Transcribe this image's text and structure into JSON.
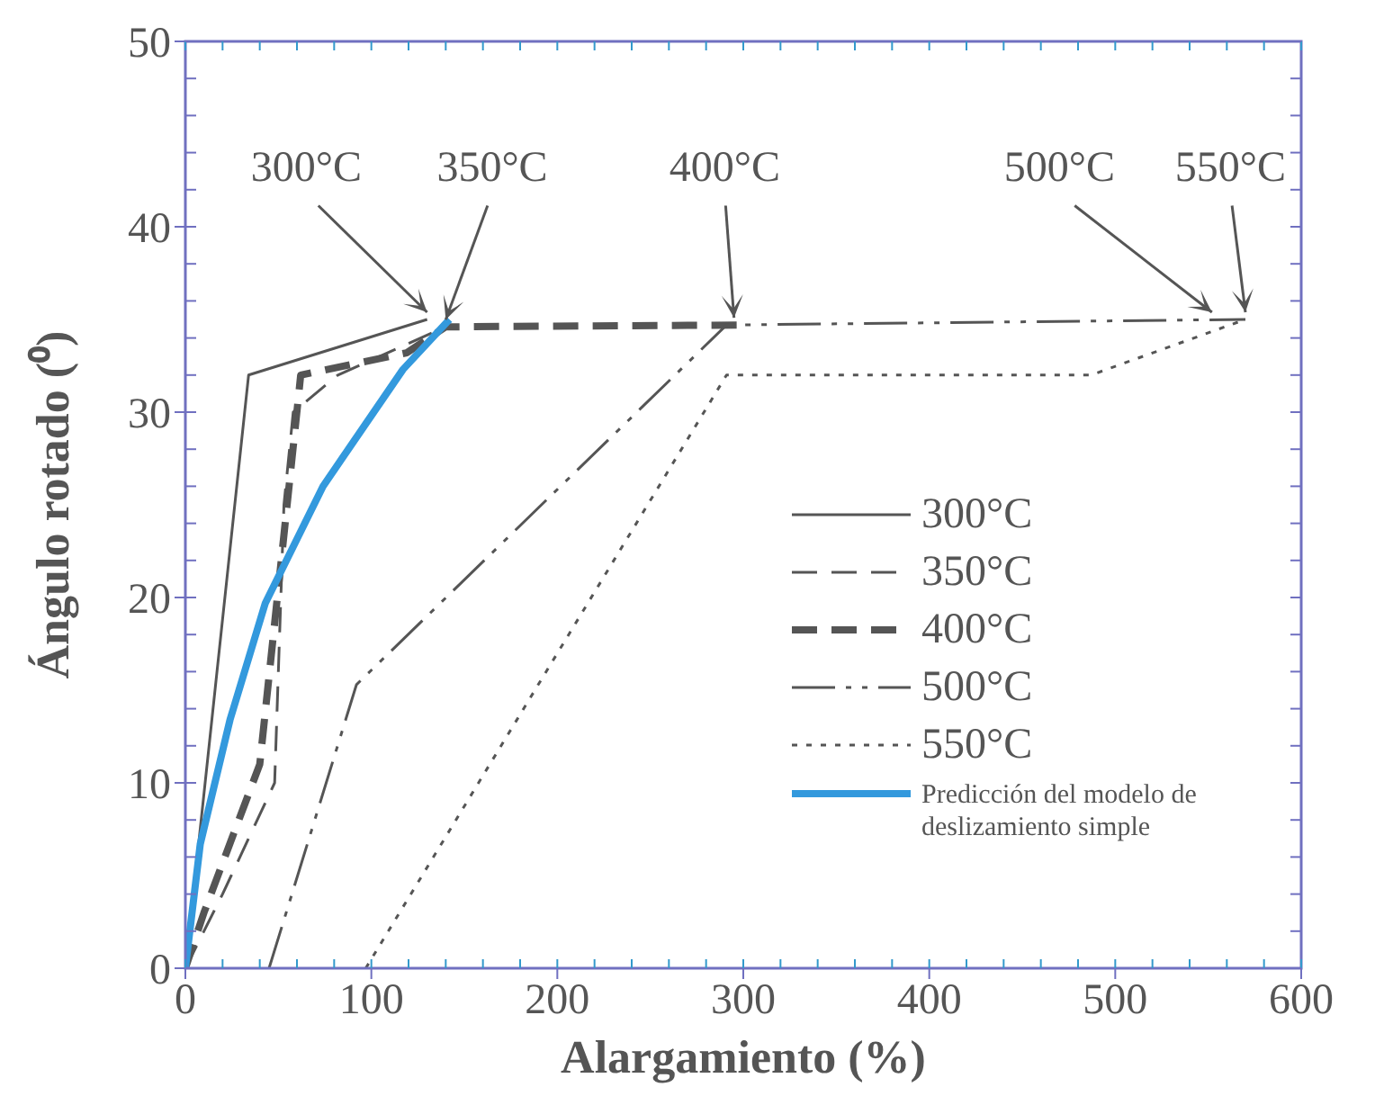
{
  "chart_data": {
    "type": "line",
    "xlabel": "Alargamiento (%)",
    "ylabel": "Ángulo rotado (⁰)",
    "xlim": [
      0,
      600
    ],
    "xticks": [
      0,
      100,
      200,
      300,
      400,
      500,
      600
    ],
    "ylim": [
      0,
      50
    ],
    "yticks": [
      0,
      10,
      20,
      30,
      40,
      50
    ],
    "grid": false,
    "legend": "right",
    "marker": "none",
    "series": [
      {
        "name": "300°C",
        "color": "#555555",
        "line_style": "solid",
        "x": [
          0,
          34,
          130
        ],
        "values": [
          0,
          32,
          35
        ]
      },
      {
        "name": "350°C",
        "color": "#555555",
        "line_style": "dashed",
        "x": [
          0,
          20,
          48,
          53,
          58,
          82,
          140
        ],
        "values": [
          0,
          4,
          10,
          25,
          30,
          32,
          34.6
        ]
      },
      {
        "name": "400°C",
        "color": "#555555",
        "line_style": "dashed",
        "x": [
          0,
          10,
          40,
          61,
          62,
          119,
          140,
          298
        ],
        "values": [
          0,
          3,
          11,
          31,
          32,
          33.2,
          34.6,
          34.7
        ]
      },
      {
        "name": "500°C",
        "color": "#555555",
        "line_style": "dashdot",
        "x": [
          45,
          92,
          291,
          570
        ],
        "values": [
          0,
          15.3,
          34.7,
          35
        ]
      },
      {
        "name": "550°C",
        "color": "#555555",
        "line_style": "dotted",
        "x": [
          97,
          291,
          487,
          570
        ],
        "values": [
          0,
          32,
          32,
          35
        ]
      },
      {
        "name": "Predicción del modelo de deslizamiento simple",
        "color": "#3399dd",
        "line_style": "solid",
        "x": [
          0,
          8,
          24,
          43,
          74,
          117,
          142
        ],
        "values": [
          0,
          6.7,
          13.4,
          19.7,
          26,
          32.3,
          35
        ]
      }
    ],
    "annotations": [
      {
        "text": "300°C",
        "x": 130,
        "y": 35
      },
      {
        "text": "350°C",
        "x": 140,
        "y": 34.6
      },
      {
        "text": "400°C",
        "x": 295,
        "y": 34.7
      },
      {
        "text": "500°C",
        "x": 552,
        "y": 35
      },
      {
        "text": "550°C",
        "x": 570,
        "y": 35
      }
    ]
  }
}
